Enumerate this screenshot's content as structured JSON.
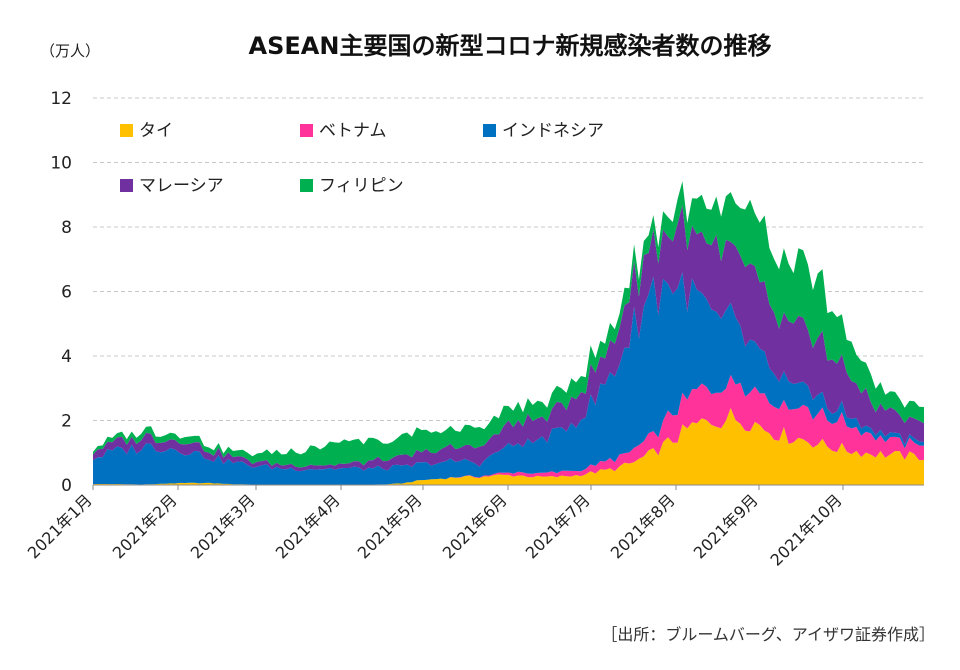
{
  "chart_data": {
    "type": "area",
    "stacked": true,
    "title": "ASEAN主要国の新型コロナ新規感染者数の推移",
    "ylabel": "（万人）",
    "ylim": [
      0,
      12
    ],
    "yticks": [
      "0",
      "2",
      "4",
      "6",
      "8",
      "10",
      "12"
    ],
    "grid": true,
    "legend_position": "top-left",
    "x_month_labels": [
      "2021年1月",
      "2021年2月",
      "2021年3月",
      "2021年4月",
      "2021年5月",
      "2021年6月",
      "2021年7月",
      "2021年8月",
      "2021年9月",
      "2021年10月"
    ],
    "x_weeks": 44,
    "series": [
      {
        "name": "タイ",
        "color": "#FFC000",
        "values": [
          0.03,
          0.03,
          0.02,
          0.02,
          0.05,
          0.06,
          0.06,
          0.03,
          0.02,
          0.01,
          0.01,
          0.01,
          0.01,
          0.01,
          0.01,
          0.02,
          0.05,
          0.15,
          0.2,
          0.25,
          0.25,
          0.3,
          0.3,
          0.25,
          0.25,
          0.3,
          0.4,
          0.5,
          0.7,
          1.0,
          1.4,
          1.8,
          2.0,
          2.1,
          2.0,
          1.7,
          1.5,
          1.4,
          1.2,
          1.1,
          1.0,
          0.95,
          0.9,
          0.88
        ]
      },
      {
        "name": "ベトナム",
        "color": "#FF3399",
        "values": [
          0,
          0,
          0,
          0,
          0,
          0,
          0,
          0,
          0,
          0,
          0,
          0,
          0,
          0,
          0,
          0,
          0,
          0,
          0,
          0.01,
          0.02,
          0.05,
          0.1,
          0.1,
          0.15,
          0.15,
          0.2,
          0.3,
          0.4,
          0.6,
          0.8,
          1.0,
          1.1,
          1.2,
          1.2,
          1.0,
          1.0,
          1.0,
          0.9,
          0.8,
          0.6,
          0.5,
          0.4,
          0.4
        ]
      },
      {
        "name": "インドネシア",
        "color": "#0070C0",
        "values": [
          0.8,
          1.0,
          1.1,
          1.2,
          1.1,
          1.0,
          0.8,
          0.7,
          0.6,
          0.55,
          0.5,
          0.5,
          0.5,
          0.5,
          0.5,
          0.5,
          0.5,
          0.5,
          0.5,
          0.5,
          0.4,
          0.7,
          0.9,
          1.0,
          1.2,
          1.6,
          2.0,
          2.8,
          3.8,
          4.5,
          4.0,
          3.0,
          2.4,
          2.0,
          1.5,
          1.0,
          0.8,
          0.6,
          0.4,
          0.3,
          0.2,
          0.15,
          0.12,
          0.12
        ]
      },
      {
        "name": "マレーシア",
        "color": "#7030A0",
        "values": [
          0.2,
          0.3,
          0.3,
          0.3,
          0.3,
          0.3,
          0.2,
          0.2,
          0.15,
          0.12,
          0.12,
          0.12,
          0.12,
          0.15,
          0.2,
          0.25,
          0.3,
          0.35,
          0.4,
          0.45,
          0.55,
          0.6,
          0.65,
          0.7,
          0.75,
          0.8,
          0.9,
          1.0,
          1.3,
          1.5,
          1.7,
          1.9,
          2.1,
          2.1,
          2.2,
          2.0,
          1.9,
          1.8,
          1.6,
          1.4,
          1.0,
          0.7,
          0.6,
          0.55
        ]
      },
      {
        "name": "フィリピン",
        "color": "#00B050",
        "values": [
          0.1,
          0.15,
          0.15,
          0.2,
          0.2,
          0.2,
          0.15,
          0.15,
          0.2,
          0.3,
          0.4,
          0.5,
          0.6,
          0.7,
          0.7,
          0.6,
          0.6,
          0.6,
          0.6,
          0.55,
          0.55,
          0.55,
          0.5,
          0.5,
          0.5,
          0.5,
          0.5,
          0.5,
          0.5,
          0.5,
          0.7,
          0.9,
          1.2,
          1.5,
          1.8,
          1.9,
          1.9,
          1.8,
          1.6,
          1.2,
          0.8,
          0.6,
          0.5,
          0.45
        ]
      }
    ],
    "source": "［出所：ブルームバーグ、アイザワ証券作成］"
  }
}
